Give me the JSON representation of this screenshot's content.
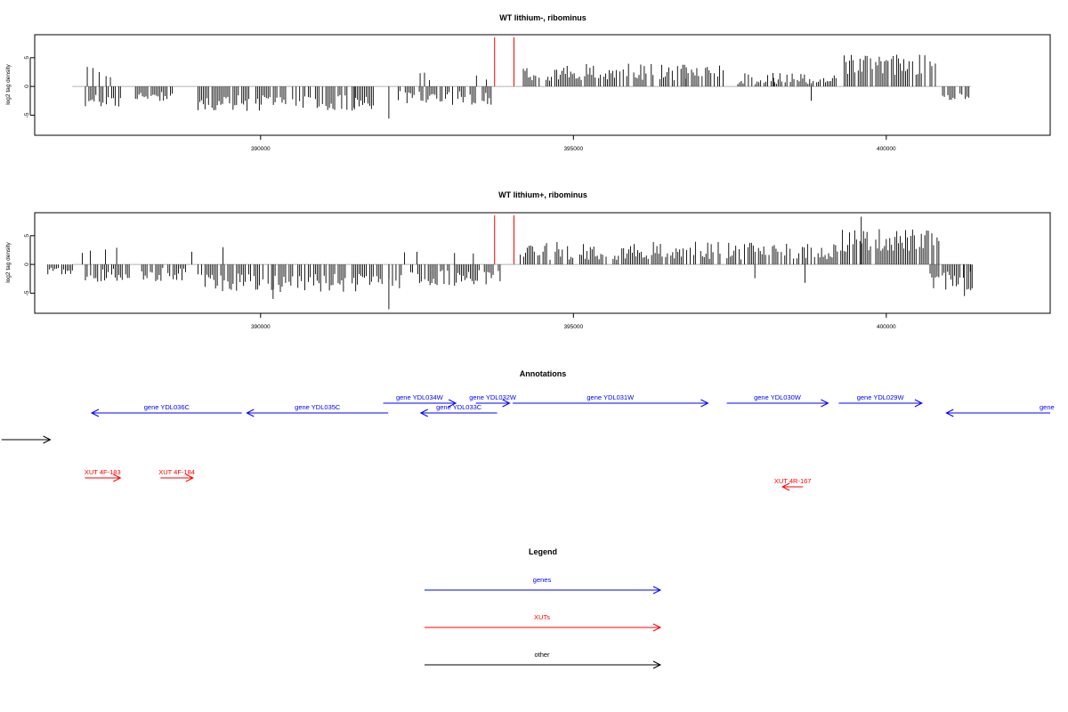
{
  "chart_data": [
    {
      "type": "bar",
      "title": "WT lithium-, ribominus",
      "ylabel": "log2 tag density",
      "xlabel": "",
      "xlim": [
        386390,
        402620
      ],
      "ylim": [
        -8.5,
        9
      ],
      "x_ticks": [
        390000,
        395000,
        400000
      ],
      "y_ticks": [
        -5,
        0,
        5
      ],
      "grid": false,
      "segments": [
        {
          "from": 387200,
          "to": 387800,
          "mean": -2.6,
          "amp": 1.2
        },
        {
          "from": 388000,
          "to": 388600,
          "mean": -1.6,
          "amp": 1.0
        },
        {
          "from": 389000,
          "to": 391800,
          "mean": -2.9,
          "amp": 1.4
        },
        {
          "from": 392200,
          "to": 393700,
          "mean": -2.0,
          "amp": 1.2
        },
        {
          "from": 394200,
          "to": 397400,
          "mean": 2.5,
          "amp": 1.5
        },
        {
          "from": 397600,
          "to": 399200,
          "mean": 1.2,
          "amp": 1.2
        },
        {
          "from": 399300,
          "to": 400800,
          "mean": 3.8,
          "amp": 1.8
        },
        {
          "from": 400900,
          "to": 401350,
          "mean": -1.6,
          "amp": 1.0
        }
      ],
      "extra_bars": [
        {
          "x": 387230,
          "y": 3.4
        },
        {
          "x": 387320,
          "y": 3.2
        },
        {
          "x": 387420,
          "y": 2.5
        },
        {
          "x": 387530,
          "y": 1.8
        },
        {
          "x": 387600,
          "y": 1.6
        },
        {
          "x": 392550,
          "y": 2.3
        },
        {
          "x": 392620,
          "y": 2.4
        },
        {
          "x": 392700,
          "y": 1.1
        },
        {
          "x": 393450,
          "y": 1.9
        },
        {
          "x": 393610,
          "y": 1.2
        },
        {
          "x": 392050,
          "y": -5.6
        },
        {
          "x": 391500,
          "y": -4.0
        },
        {
          "x": 398800,
          "y": -2.5
        },
        {
          "x": 398200,
          "y": 1.5
        },
        {
          "x": 396800,
          "y": 1.4
        }
      ],
      "markers": [
        393740,
        394050
      ]
    },
    {
      "type": "bar",
      "title": "WT lithium+, ribominus",
      "ylabel": "log2 tag density",
      "xlabel": "",
      "xlim": [
        386390,
        402620
      ],
      "ylim": [
        -8.5,
        9
      ],
      "x_ticks": [
        390000,
        395000,
        400000
      ],
      "y_ticks": [
        -5,
        0,
        5
      ],
      "grid": false,
      "segments": [
        {
          "from": 386600,
          "to": 387000,
          "mean": -1.0,
          "amp": 0.8
        },
        {
          "from": 387200,
          "to": 387900,
          "mean": -1.9,
          "amp": 1.2
        },
        {
          "from": 388100,
          "to": 388800,
          "mean": -1.8,
          "amp": 1.2
        },
        {
          "from": 389000,
          "to": 392300,
          "mean": -3.2,
          "amp": 1.6
        },
        {
          "from": 392400,
          "to": 393850,
          "mean": -2.4,
          "amp": 1.4
        },
        {
          "from": 394150,
          "to": 399300,
          "mean": 2.4,
          "amp": 1.6
        },
        {
          "from": 399300,
          "to": 400850,
          "mean": 4.2,
          "amp": 2.0
        },
        {
          "from": 400700,
          "to": 401400,
          "mean": -2.8,
          "amp": 1.6
        }
      ],
      "extra_bars": [
        {
          "x": 387150,
          "y": 2.0
        },
        {
          "x": 387280,
          "y": 2.4
        },
        {
          "x": 387520,
          "y": 2.6
        },
        {
          "x": 387700,
          "y": 2.9
        },
        {
          "x": 388900,
          "y": 2.2
        },
        {
          "x": 389400,
          "y": 3.0
        },
        {
          "x": 392300,
          "y": 2.1
        },
        {
          "x": 392500,
          "y": 2.2
        },
        {
          "x": 393100,
          "y": 2.0
        },
        {
          "x": 393400,
          "y": 1.9
        },
        {
          "x": 392050,
          "y": -7.8
        },
        {
          "x": 390200,
          "y": -6.0
        },
        {
          "x": 399600,
          "y": 8.3
        },
        {
          "x": 401250,
          "y": -5.5
        },
        {
          "x": 401350,
          "y": -4.5
        },
        {
          "x": 398700,
          "y": -3.2
        },
        {
          "x": 397900,
          "y": -2.4
        }
      ],
      "markers": [
        393740,
        394050
      ]
    }
  ],
  "annotations": {
    "title": "Annotations",
    "genes": [
      {
        "label": "gene YDL036C",
        "from": 389700,
        "to": 387300,
        "dir": "left",
        "row": 1
      },
      {
        "label": "gene YDL035C",
        "from": 392040,
        "to": 389780,
        "dir": "left",
        "row": 1
      },
      {
        "label": "gene YDL034W",
        "from": 391960,
        "to": 393120,
        "dir": "right",
        "row": 0
      },
      {
        "label": "gene YDL033C",
        "from": 393780,
        "to": 392560,
        "dir": "left",
        "row": 1
      },
      {
        "label": "gene YDL032W",
        "from": 393440,
        "to": 393980,
        "dir": "right",
        "row": 0
      },
      {
        "label": "gene YDL031W",
        "from": 394030,
        "to": 397150,
        "dir": "right",
        "row": 0
      },
      {
        "label": "gene YDL030W",
        "from": 397450,
        "to": 399070,
        "dir": "right",
        "row": 0
      },
      {
        "label": "gene YDL029W",
        "from": 399240,
        "to": 400570,
        "dir": "right",
        "row": 0
      },
      {
        "label": "gene",
        "from": 402620,
        "to": 400960,
        "dir": "left",
        "row": 1
      }
    ],
    "xuts": [
      {
        "label": "XUT 4F-183",
        "from": 387190,
        "to": 387760,
        "dir": "right",
        "row": 0
      },
      {
        "label": "XUT 4F-184",
        "from": 388400,
        "to": 388920,
        "dir": "right",
        "row": 0
      },
      {
        "label": "XUT 4R-167",
        "from": 398670,
        "to": 398340,
        "dir": "left",
        "row": 1
      }
    ],
    "other": [
      {
        "label": "",
        "from": 385860,
        "to": 386640,
        "dir": "right",
        "row": 0
      }
    ]
  },
  "legend": {
    "title": "Legend",
    "items": [
      {
        "label": "genes",
        "color": "#0000ff"
      },
      {
        "label": "XUTs",
        "color": "#ff0000"
      },
      {
        "label": "other",
        "color": "#000000"
      }
    ]
  },
  "colors": {
    "bars": "#000000",
    "baseline": "#b3b3b3",
    "marker": "#ff0000",
    "gene": "#0000ff",
    "xut": "#ff0000",
    "other": "#000000"
  }
}
